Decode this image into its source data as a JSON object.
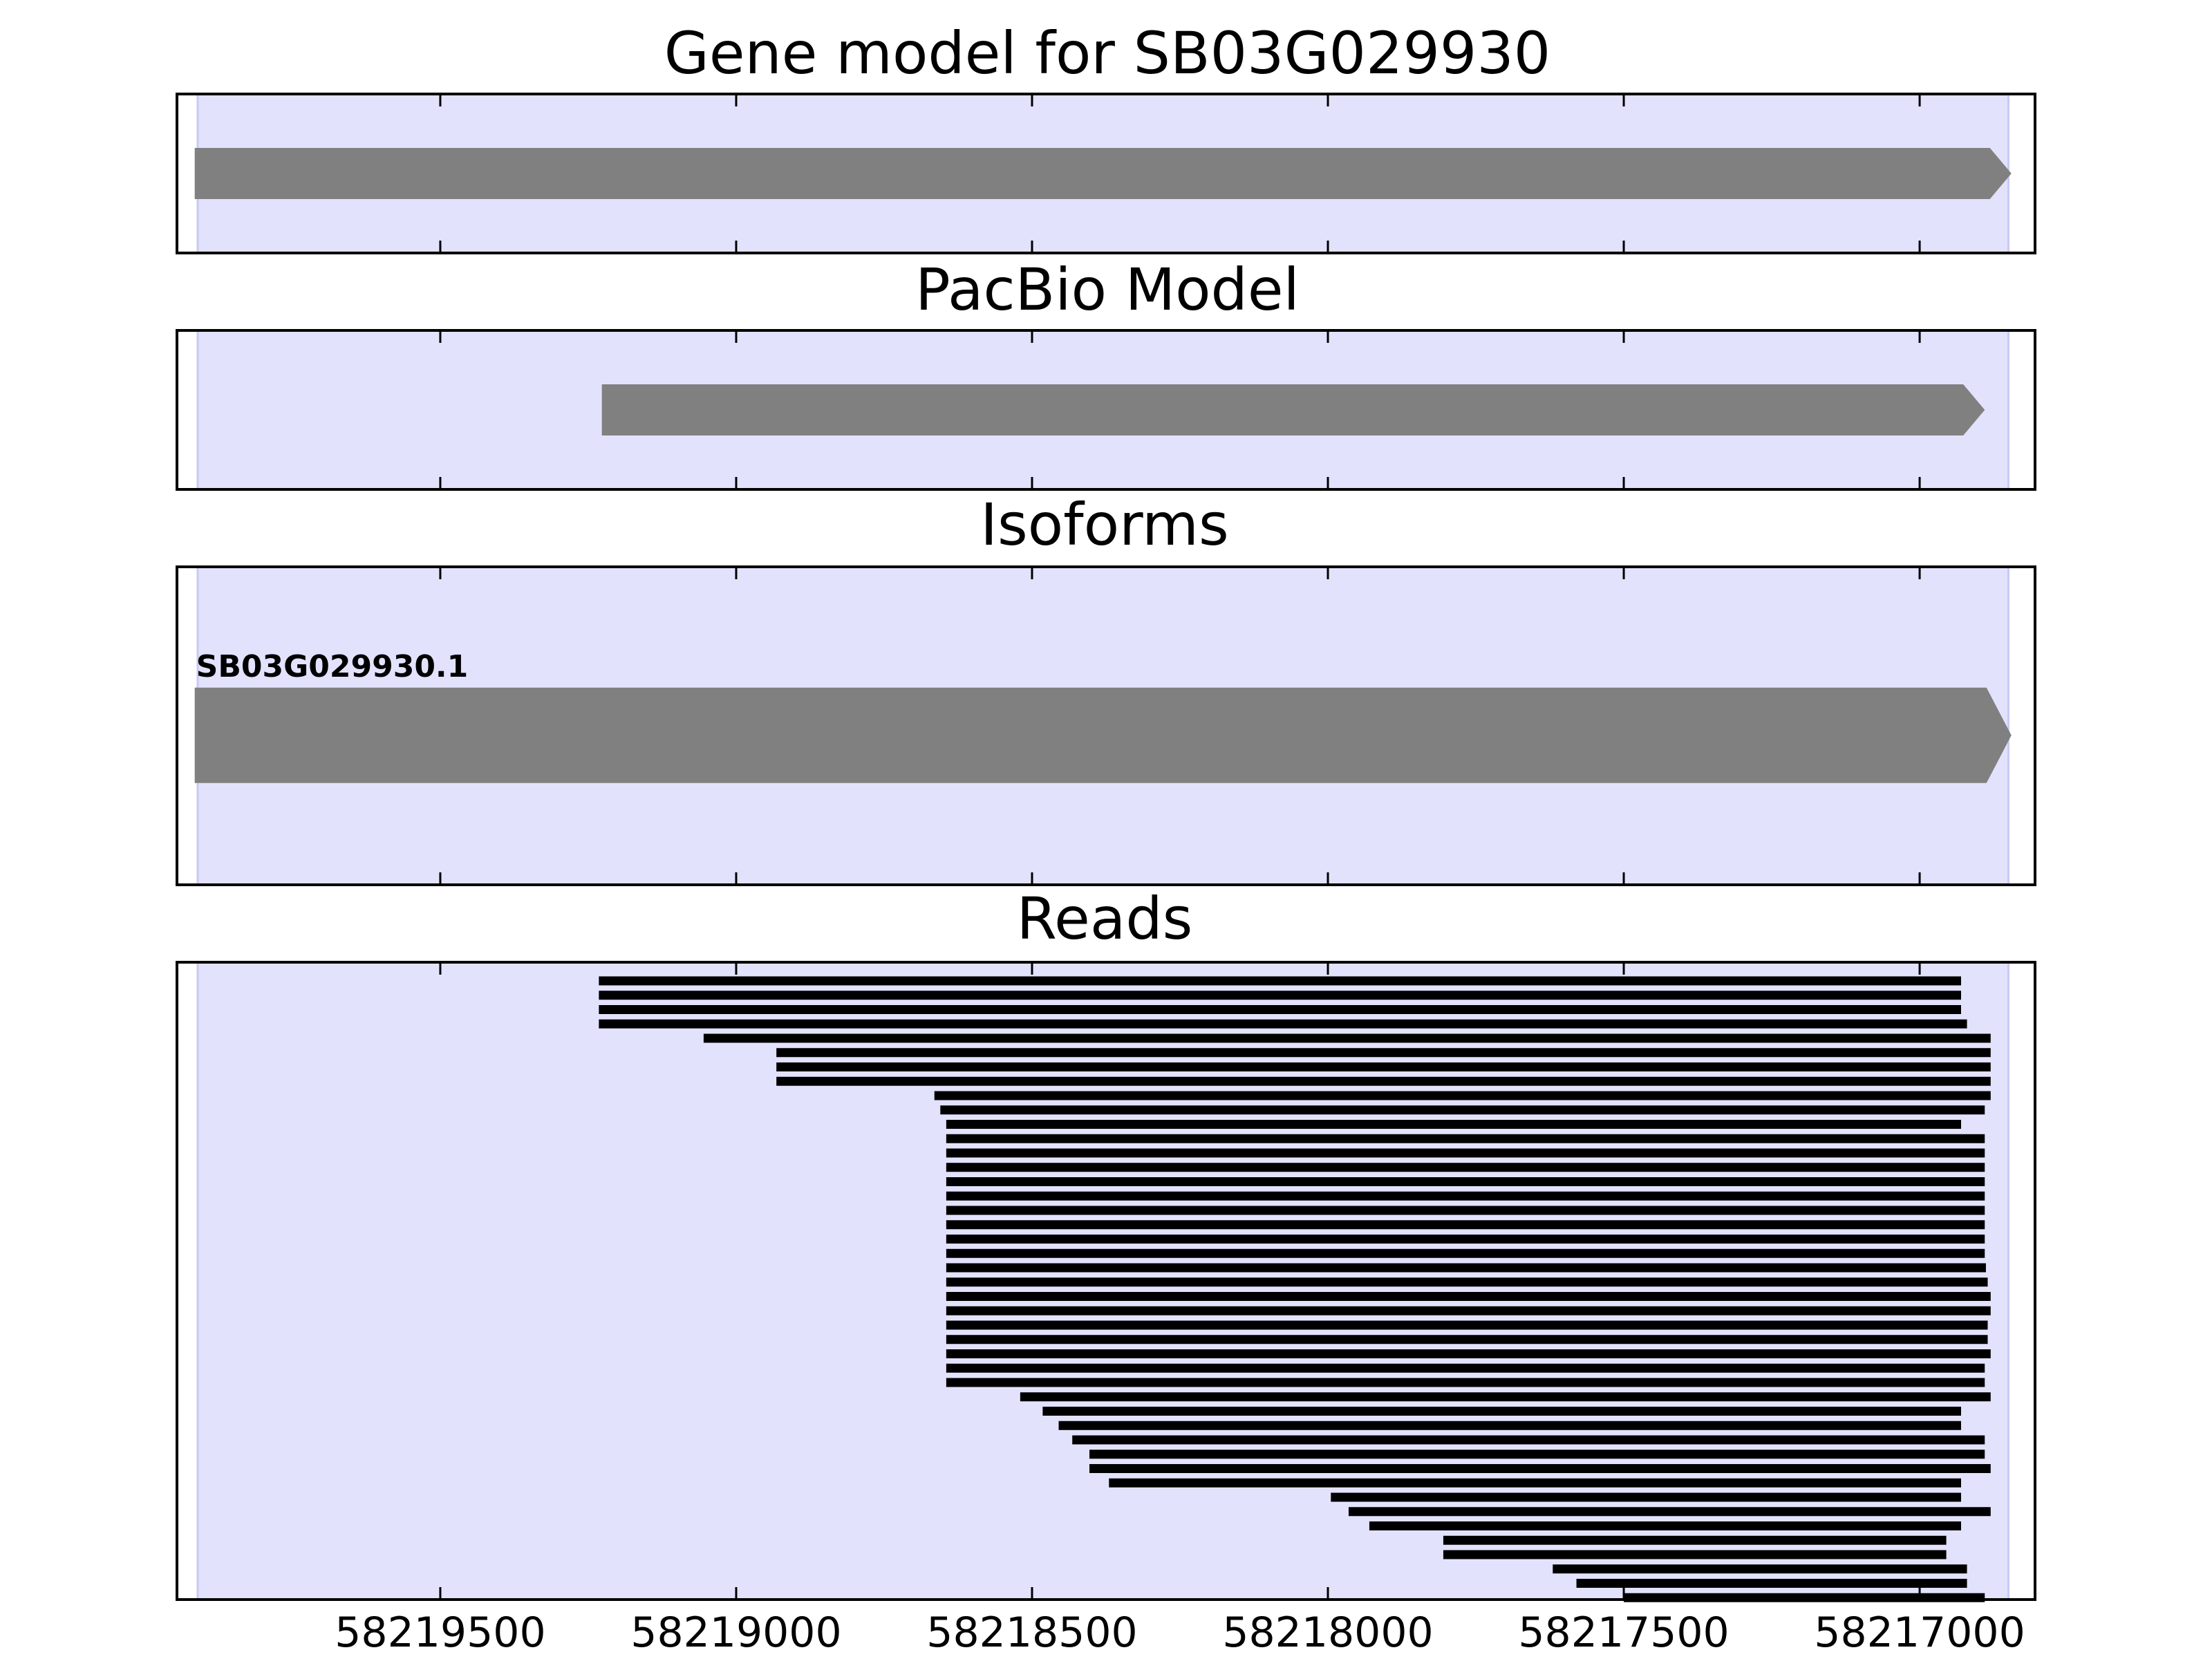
{
  "chart_data": {
    "type": "gene-track",
    "x_axis": {
      "reversed": true,
      "xlim": [
        58219945,
        58216805
      ],
      "ticks": [
        58219500,
        58219000,
        58218500,
        58218000,
        58217500,
        58217000
      ],
      "tick_labels": [
        "58219500",
        "58219000",
        "58218500",
        "58218000",
        "58217500",
        "58217000"
      ]
    },
    "highlight_region": {
      "start": 58219910,
      "end": 58216850,
      "color": "#e2e2fd"
    },
    "panels": [
      {
        "id": "gene_model",
        "title": "Gene model for SB03G029930",
        "features": [
          {
            "start": 58219915,
            "end": 58216845,
            "strand": "-",
            "color": "#808080"
          }
        ]
      },
      {
        "id": "pacbio_model",
        "title": "PacBio Model",
        "features": [
          {
            "start": 58219227,
            "end": 58216890,
            "strand": "-",
            "color": "#808080"
          }
        ]
      },
      {
        "id": "isoforms",
        "title": "Isoforms",
        "features": [
          {
            "label": "SB03G029930.1",
            "start": 58219915,
            "end": 58216845,
            "strand": "-",
            "color": "#808080"
          }
        ]
      },
      {
        "id": "reads",
        "title": "Reads",
        "color": "#000000",
        "reads": [
          [
            58219232,
            58216930
          ],
          [
            58219232,
            58216930
          ],
          [
            58219232,
            58216930
          ],
          [
            58219232,
            58216920
          ],
          [
            58219055,
            58216880
          ],
          [
            58218932,
            58216880
          ],
          [
            58218932,
            58216880
          ],
          [
            58218932,
            58216880
          ],
          [
            58218665,
            58216880
          ],
          [
            58218655,
            58216890
          ],
          [
            58218645,
            58216930
          ],
          [
            58218645,
            58216890
          ],
          [
            58218645,
            58216890
          ],
          [
            58218645,
            58216890
          ],
          [
            58218645,
            58216890
          ],
          [
            58218645,
            58216890
          ],
          [
            58218645,
            58216890
          ],
          [
            58218645,
            58216890
          ],
          [
            58218645,
            58216890
          ],
          [
            58218645,
            58216890
          ],
          [
            58218645,
            58216888
          ],
          [
            58218645,
            58216885
          ],
          [
            58218645,
            58216880
          ],
          [
            58218645,
            58216880
          ],
          [
            58218645,
            58216885
          ],
          [
            58218645,
            58216885
          ],
          [
            58218645,
            58216880
          ],
          [
            58218645,
            58216890
          ],
          [
            58218645,
            58216890
          ],
          [
            58218520,
            58216880
          ],
          [
            58218482,
            58216930
          ],
          [
            58218455,
            58216930
          ],
          [
            58218432,
            58216890
          ],
          [
            58218403,
            58216890
          ],
          [
            58218403,
            58216880
          ],
          [
            58218370,
            58216930
          ],
          [
            58217995,
            58216930
          ],
          [
            58217965,
            58216880
          ],
          [
            58217930,
            58216930
          ],
          [
            58217805,
            58216955
          ],
          [
            58217805,
            58216955
          ],
          [
            58217620,
            58216920
          ],
          [
            58217580,
            58216920
          ],
          [
            58217500,
            58216890
          ]
        ]
      }
    ]
  }
}
